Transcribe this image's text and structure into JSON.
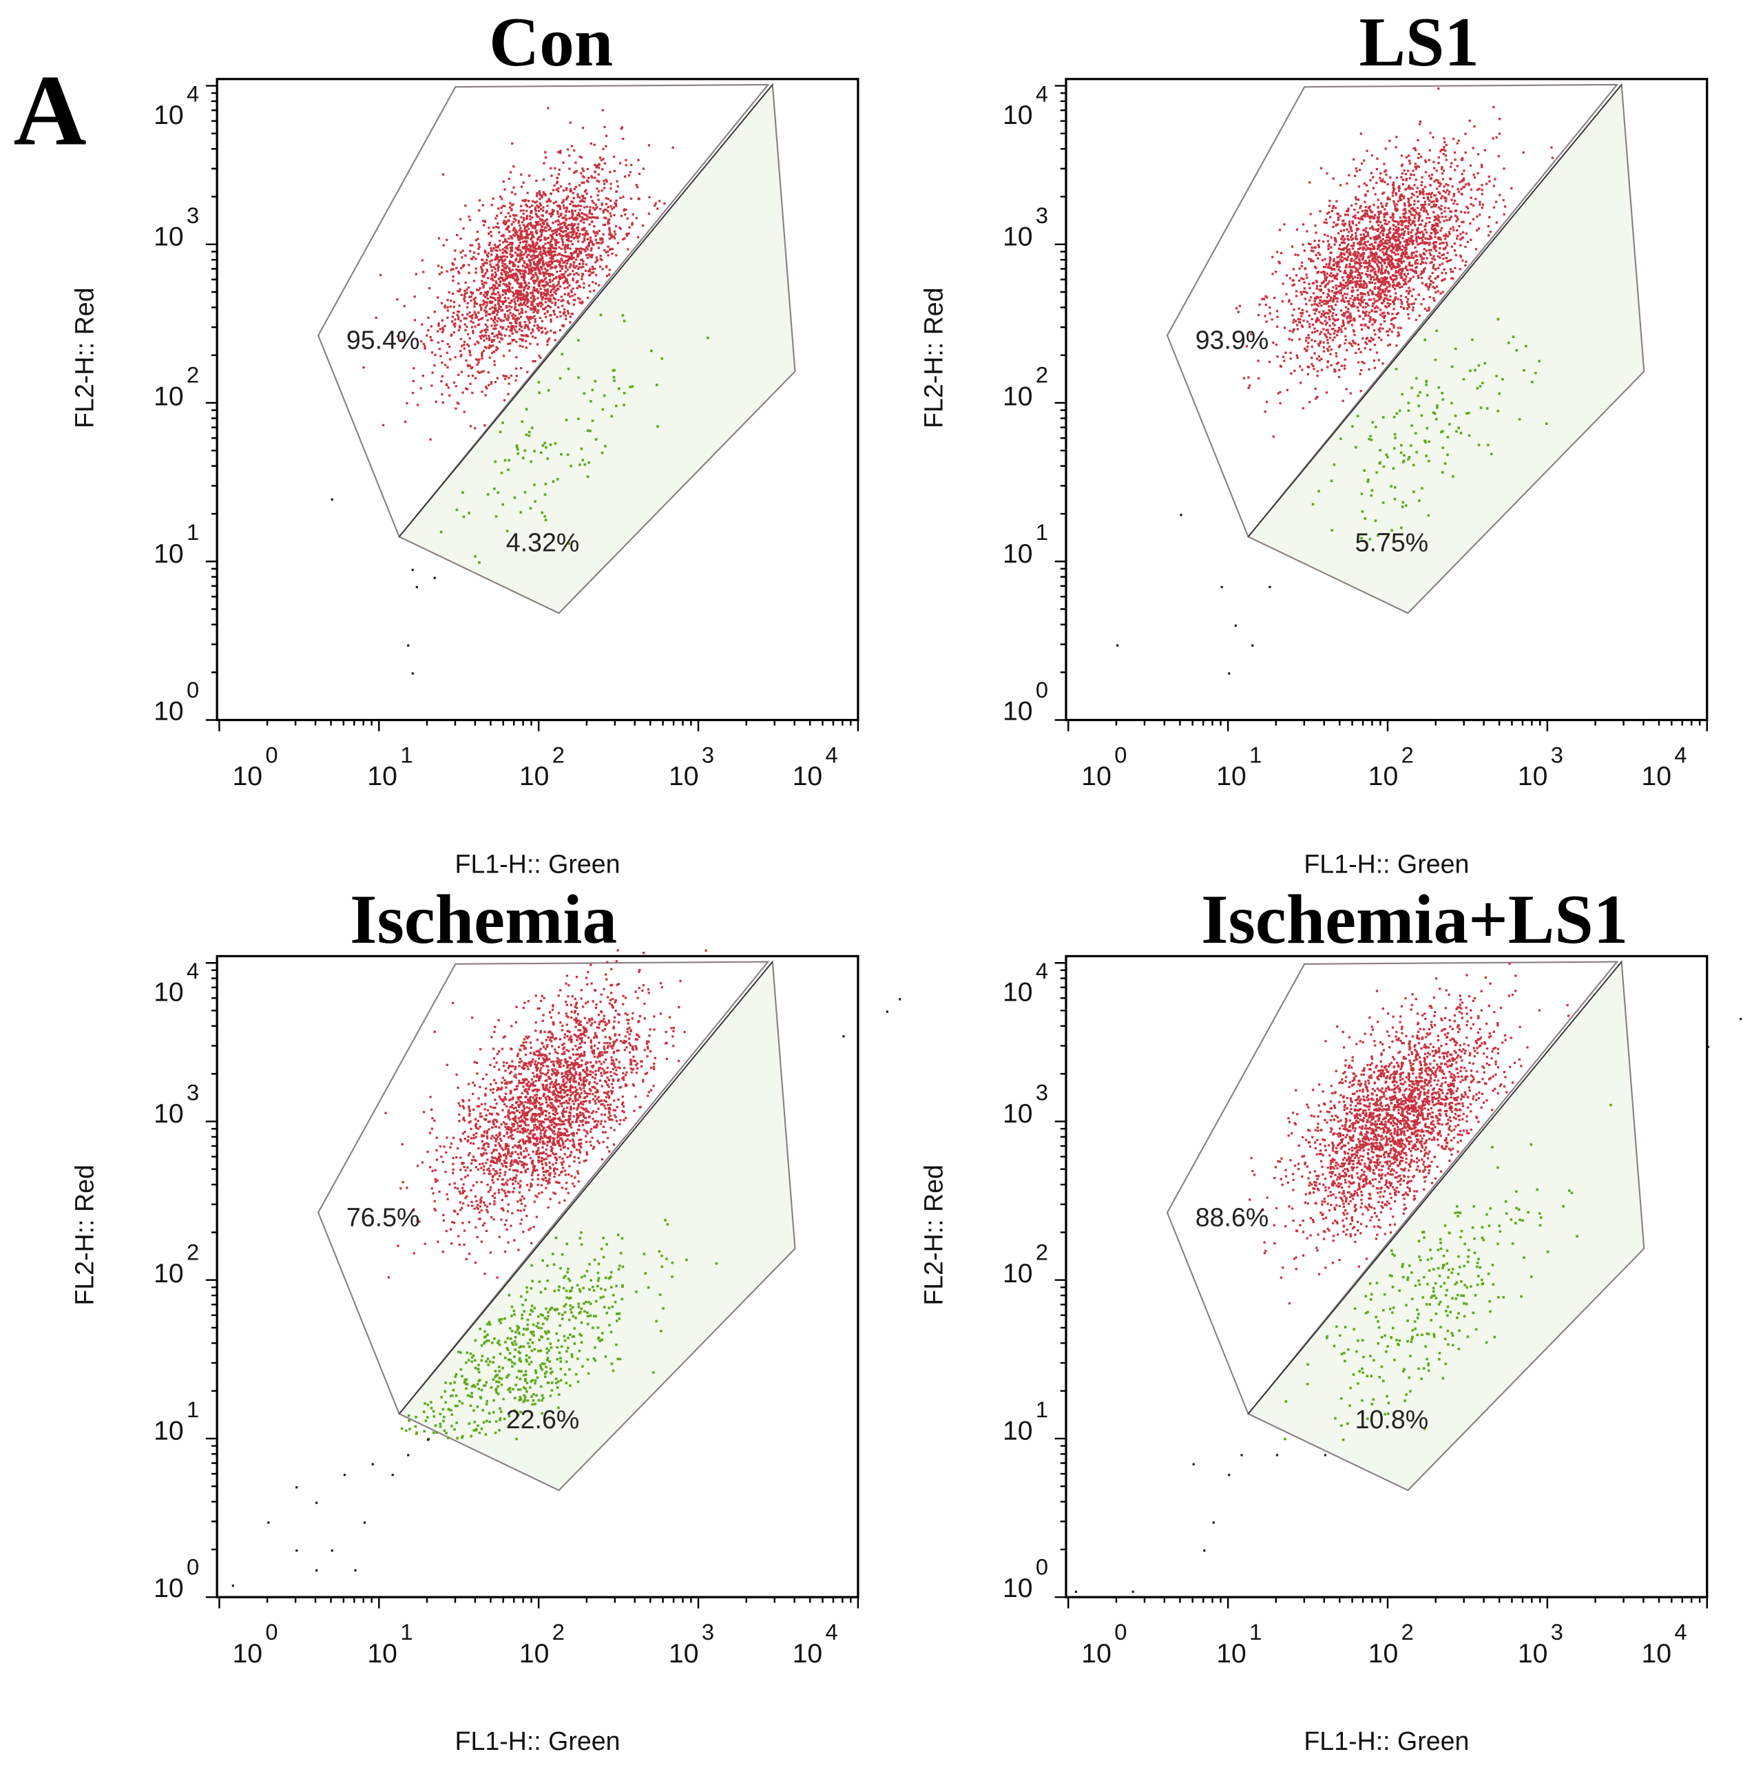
{
  "panel_letter": "A",
  "colors": {
    "red": "#c8323f",
    "green": "#5fa81c",
    "gate_fill": "#f3f8ee",
    "gate_line": "#8a7f84",
    "outlier": "#222222"
  },
  "chart_data": [
    {
      "type": "scatter",
      "title": "Con",
      "xlabel": "FL1-H:: Green",
      "ylabel": "FL2-H:: Red",
      "xscale": "log",
      "yscale": "log",
      "xlim": [
        1,
        20000
      ],
      "ylim": [
        1,
        20000
      ],
      "x_ticks": [
        "10",
        "10",
        "10",
        "10",
        "10"
      ],
      "x_tick_exp": [
        "0",
        "1",
        "2",
        "3",
        "4"
      ],
      "y_ticks": [
        "10",
        "10",
        "10",
        "10",
        "10"
      ],
      "y_tick_exp": [
        "0",
        "1",
        "2",
        "3",
        "4"
      ],
      "gates": [
        {
          "name": "red",
          "percent": "95.4%"
        },
        {
          "name": "green",
          "percent": "4.32%"
        }
      ],
      "red_cluster": {
        "log_center": [
          1.95,
          2.85
        ],
        "log_sd": [
          0.28,
          0.32
        ],
        "n": 2400
      },
      "green_cluster": {
        "log_center": [
          2.15,
          1.85
        ],
        "log_sd": [
          0.35,
          0.35
        ],
        "n": 110
      },
      "outliers": [
        [
          5,
          25
        ],
        [
          16,
          9
        ],
        [
          17,
          7
        ],
        [
          15,
          3
        ],
        [
          16,
          2
        ],
        [
          22,
          8
        ]
      ]
    },
    {
      "type": "scatter",
      "title": "LS1",
      "xlabel": "FL1-H:: Green",
      "ylabel": "FL2-H:: Red",
      "xscale": "log",
      "yscale": "log",
      "xlim": [
        1,
        20000
      ],
      "ylim": [
        1,
        20000
      ],
      "x_ticks": [
        "10",
        "10",
        "10",
        "10",
        "10"
      ],
      "x_tick_exp": [
        "0",
        "1",
        "2",
        "3",
        "4"
      ],
      "y_ticks": [
        "10",
        "10",
        "10",
        "10",
        "10"
      ],
      "y_tick_exp": [
        "0",
        "1",
        "2",
        "3",
        "4"
      ],
      "gates": [
        {
          "name": "red",
          "percent": "93.9%"
        },
        {
          "name": "green",
          "percent": "5.75%"
        }
      ],
      "red_cluster": {
        "log_center": [
          1.95,
          2.9
        ],
        "log_sd": [
          0.3,
          0.32
        ],
        "n": 2400
      },
      "green_cluster": {
        "log_center": [
          2.2,
          1.8
        ],
        "log_sd": [
          0.33,
          0.35
        ],
        "n": 150
      },
      "outliers": [
        [
          2,
          3
        ],
        [
          9,
          7
        ],
        [
          10,
          2
        ],
        [
          11,
          4
        ],
        [
          14,
          3
        ],
        [
          18,
          7
        ],
        [
          5,
          20
        ]
      ]
    },
    {
      "type": "scatter",
      "title": "Ischemia",
      "xlabel": "FL1-H:: Green",
      "ylabel": "FL2-H:: Red",
      "xscale": "log",
      "yscale": "log",
      "xlim": [
        1,
        20000
      ],
      "ylim": [
        1,
        20000
      ],
      "x_ticks": [
        "10",
        "10",
        "10",
        "10",
        "10"
      ],
      "x_tick_exp": [
        "0",
        "1",
        "2",
        "3",
        "4"
      ],
      "y_ticks": [
        "10",
        "10",
        "10",
        "10",
        "10"
      ],
      "y_tick_exp": [
        "0",
        "1",
        "2",
        "3",
        "4"
      ],
      "gates": [
        {
          "name": "red",
          "percent": "76.5%"
        },
        {
          "name": "green",
          "percent": "22.6%"
        }
      ],
      "red_cluster": {
        "log_center": [
          2.05,
          3.1
        ],
        "log_sd": [
          0.3,
          0.35
        ],
        "n": 2300
      },
      "green_cluster": {
        "log_center": [
          1.85,
          1.5
        ],
        "log_sd": [
          0.38,
          0.38
        ],
        "n": 700
      },
      "outliers": [
        [
          1.2,
          1.2
        ],
        [
          2,
          3
        ],
        [
          3,
          2
        ],
        [
          4,
          4
        ],
        [
          5,
          2
        ],
        [
          6,
          6
        ],
        [
          8,
          3
        ],
        [
          9,
          7
        ],
        [
          12,
          6
        ],
        [
          15,
          8
        ],
        [
          20,
          10
        ],
        [
          8000,
          3500
        ],
        [
          15000,
          5000
        ],
        [
          18000,
          6000
        ],
        [
          4,
          1.5
        ],
        [
          3,
          5
        ],
        [
          7,
          1.5
        ]
      ]
    },
    {
      "type": "scatter",
      "title": "Ischemia+LS1",
      "xlabel": "FL1-H:: Green",
      "ylabel": "FL2-H:: Red",
      "xscale": "log",
      "yscale": "log",
      "xlim": [
        1,
        20000
      ],
      "ylim": [
        1,
        20000
      ],
      "x_ticks": [
        "10",
        "10",
        "10",
        "10",
        "10"
      ],
      "x_tick_exp": [
        "0",
        "1",
        "2",
        "3",
        "4"
      ],
      "y_ticks": [
        "10",
        "10",
        "10",
        "10",
        "10"
      ],
      "y_tick_exp": [
        "0",
        "1",
        "2",
        "3",
        "4"
      ],
      "gates": [
        {
          "name": "red",
          "percent": "88.6%"
        },
        {
          "name": "green",
          "percent": "10.8%"
        }
      ],
      "red_cluster": {
        "log_center": [
          2.05,
          3.0
        ],
        "log_sd": [
          0.3,
          0.33
        ],
        "n": 2400
      },
      "green_cluster": {
        "log_center": [
          2.2,
          1.85
        ],
        "log_sd": [
          0.36,
          0.4
        ],
        "n": 300
      },
      "outliers": [
        [
          6,
          7
        ],
        [
          7,
          2
        ],
        [
          8,
          3
        ],
        [
          10,
          6
        ],
        [
          12,
          8
        ],
        [
          20,
          8
        ],
        [
          40,
          8
        ],
        [
          10000,
          3000
        ],
        [
          16000,
          4500
        ],
        [
          1.1,
          1.1
        ],
        [
          2.5,
          1.1
        ]
      ]
    }
  ]
}
